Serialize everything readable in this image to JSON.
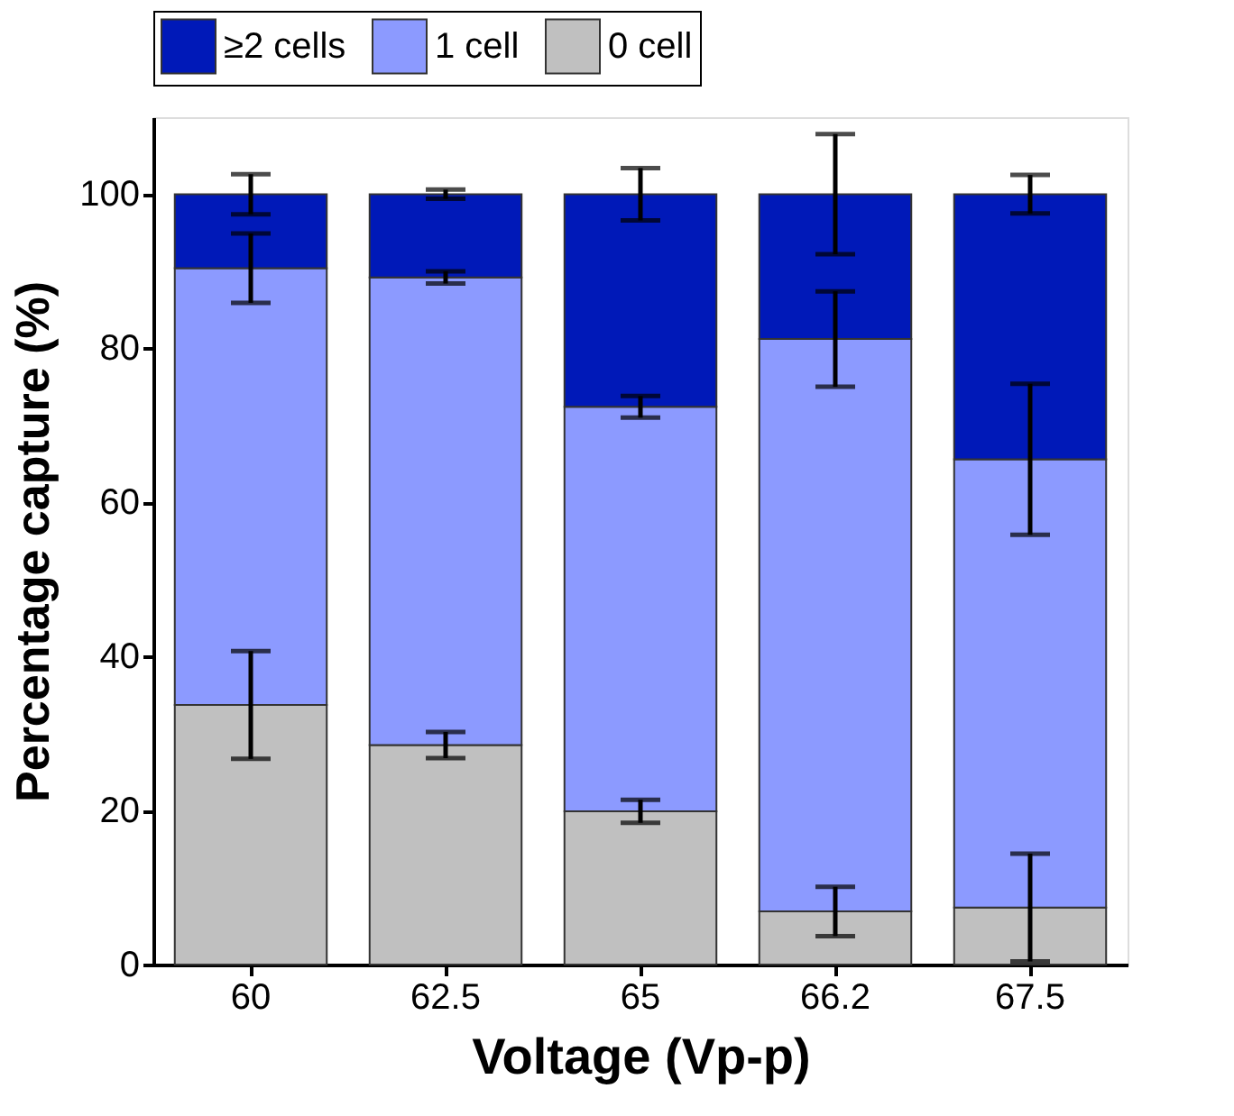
{
  "chart_data": {
    "type": "bar",
    "stacked": true,
    "xlabel": "Voltage (Vp-p)",
    "ylabel": "Percentage capture (%)",
    "categories": [
      "60",
      "62.5",
      "65",
      "66.2",
      "67.5"
    ],
    "series": [
      {
        "name": "0 cell",
        "color": "#c0c0c0",
        "values": [
          33.7,
          28.5,
          19.9,
          6.9,
          7.4
        ],
        "errors": [
          7,
          1.7,
          1.5,
          3.2,
          7
        ]
      },
      {
        "name": "1 cell",
        "color": "#8c9aff",
        "values": [
          56.7,
          60.7,
          52.5,
          74.3,
          58.2
        ],
        "errors": [
          4.5,
          0.8,
          1.4,
          6.2,
          9.8
        ]
      },
      {
        "name": "≥2 cells",
        "color": "#0019b8",
        "values": [
          9.6,
          10.8,
          27.6,
          18.8,
          34.4
        ],
        "errors": [
          2.6,
          0.6,
          3.4,
          7.8,
          2.5
        ]
      }
    ],
    "ylim": [
      0,
      110
    ],
    "yticks": [
      0,
      20,
      40,
      60,
      80,
      100
    ],
    "grid": false,
    "legend": "top"
  }
}
